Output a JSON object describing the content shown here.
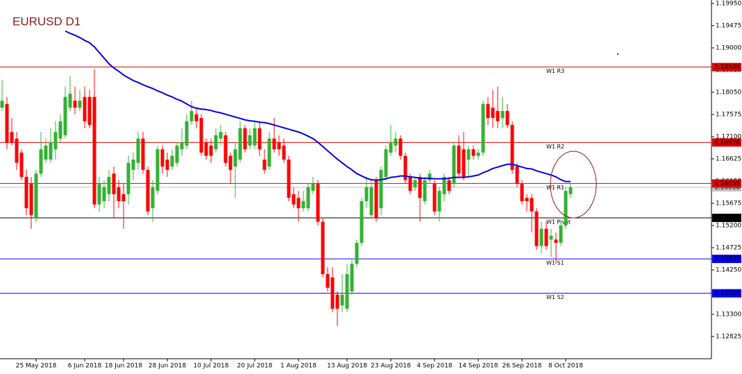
{
  "chart_data": {
    "type": "candlestick",
    "title": "EURUSD D1",
    "ylim": [
      1.1235,
      1.20024
    ],
    "yticks": [
      {
        "value": 1.1995,
        "label": "1.19950"
      },
      {
        "value": 1.19475,
        "label": "1.19475"
      },
      {
        "value": 1.19,
        "label": "1.19000"
      },
      {
        "value": 1.18525,
        "label": "1.18525"
      },
      {
        "value": 1.1805,
        "label": "1.18050"
      },
      {
        "value": 1.17575,
        "label": "1.17575"
      },
      {
        "value": 1.171,
        "label": "1.17100"
      },
      {
        "value": 1.16625,
        "label": "1.16625"
      },
      {
        "value": 1.1615,
        "label": "1.16150"
      },
      {
        "value": 1.15675,
        "label": "1.15675"
      },
      {
        "value": 1.152,
        "label": "1.15200"
      },
      {
        "value": 1.14725,
        "label": "1.14725"
      },
      {
        "value": 1.1425,
        "label": "1.14250"
      },
      {
        "value": 1.13775,
        "label": "1.13775"
      },
      {
        "value": 1.133,
        "label": "1.13300"
      },
      {
        "value": 1.12825,
        "label": "1.12825"
      }
    ],
    "up_color": "#33b133",
    "down_color": "#ff0000",
    "categories": [
      null,
      null,
      null,
      null,
      null,
      null,
      null,
      "25 May 2018",
      null,
      null,
      null,
      null,
      null,
      null,
      null,
      null,
      null,
      "6 Jun 2018",
      null,
      null,
      null,
      null,
      null,
      null,
      null,
      "18 Jun 2018",
      null,
      null,
      null,
      null,
      null,
      null,
      null,
      null,
      "28 Jun 2018",
      null,
      null,
      null,
      null,
      null,
      null,
      null,
      null,
      "10 Jul 2018",
      null,
      null,
      null,
      null,
      null,
      null,
      null,
      null,
      "20 Jul 2018",
      null,
      null,
      null,
      null,
      null,
      null,
      null,
      null,
      "1 Aug 2018",
      null,
      null,
      null,
      null,
      null,
      null,
      null,
      null,
      null,
      "13 Aug 2018",
      null,
      null,
      null,
      null,
      null,
      null,
      null,
      null,
      "23 Aug 2018",
      null,
      null,
      null,
      null,
      null,
      null,
      null,
      null,
      "4 Sep 2018",
      null,
      null,
      null,
      null,
      null,
      null,
      null,
      null,
      "14 Sep 2018",
      null,
      null,
      null,
      null,
      null,
      null,
      null,
      null,
      "26 Sep 2018",
      null,
      null,
      null,
      null,
      null,
      null,
      null,
      null,
      "8 Oct 2018",
      null
    ],
    "candles": [
      [
        1.1772,
        1.1832,
        1.1765,
        1.1787
      ],
      [
        1.178,
        1.1795,
        1.1683,
        1.1698
      ],
      [
        1.172,
        1.175,
        1.1691,
        1.1698
      ],
      [
        1.1706,
        1.172,
        1.1639,
        1.1654
      ],
      [
        1.1676,
        1.1683,
        1.1617,
        1.1624
      ],
      [
        1.1624,
        1.1639,
        1.1542,
        1.1557
      ],
      [
        1.1609,
        1.1624,
        1.1513,
        1.1542
      ],
      [
        1.1535,
        1.1639,
        1.1528,
        1.1631
      ],
      [
        1.1631,
        1.172,
        1.1624,
        1.1683
      ],
      [
        1.1661,
        1.1706,
        1.1654,
        1.1691
      ],
      [
        1.1661,
        1.1728,
        1.1654,
        1.1698
      ],
      [
        1.1683,
        1.1743,
        1.1661,
        1.172
      ],
      [
        1.1706,
        1.1758,
        1.1698,
        1.1743
      ],
      [
        1.1713,
        1.1817,
        1.1706,
        1.1795
      ],
      [
        1.1772,
        1.1839,
        1.1765,
        1.1802
      ],
      [
        1.1787,
        1.1817,
        1.1758,
        1.1772
      ],
      [
        1.1772,
        1.181,
        1.1765,
        1.1787
      ],
      [
        1.1795,
        1.1817,
        1.1728,
        1.1743
      ],
      [
        1.1795,
        1.181,
        1.1728,
        1.1735
      ],
      [
        1.1795,
        1.1854,
        1.1557,
        1.1565
      ],
      [
        1.1565,
        1.1624,
        1.155,
        1.1609
      ],
      [
        1.1572,
        1.1617,
        1.1557,
        1.1602
      ],
      [
        1.1587,
        1.1639,
        1.1572,
        1.1624
      ],
      [
        1.1631,
        1.1646,
        1.1535,
        1.1587
      ],
      [
        1.1602,
        1.1617,
        1.1557,
        1.1572
      ],
      [
        1.1587,
        1.1609,
        1.1513,
        1.1572
      ],
      [
        1.1587,
        1.1669,
        1.1565,
        1.1654
      ],
      [
        1.1639,
        1.1676,
        1.1617,
        1.1661
      ],
      [
        1.1654,
        1.172,
        1.1639,
        1.1706
      ],
      [
        1.1706,
        1.172,
        1.1631,
        1.1639
      ],
      [
        1.1639,
        1.1646,
        1.1542,
        1.155
      ],
      [
        1.1557,
        1.1617,
        1.1528,
        1.1602
      ],
      [
        1.1594,
        1.1691,
        1.1587,
        1.1683
      ],
      [
        1.1683,
        1.1691,
        1.1631,
        1.1646
      ],
      [
        1.1661,
        1.1676,
        1.1624,
        1.1639
      ],
      [
        1.1646,
        1.1683,
        1.1639,
        1.1669
      ],
      [
        1.1654,
        1.1698,
        1.1646,
        1.1691
      ],
      [
        1.1683,
        1.1728,
        1.1669,
        1.1698
      ],
      [
        1.1691,
        1.1758,
        1.1683,
        1.1743
      ],
      [
        1.1743,
        1.1787,
        1.1735,
        1.1765
      ],
      [
        1.1758,
        1.1772,
        1.1728,
        1.1743
      ],
      [
        1.175,
        1.1758,
        1.1669,
        1.1676
      ],
      [
        1.1698,
        1.1706,
        1.1661,
        1.1669
      ],
      [
        1.1691,
        1.1706,
        1.1654,
        1.1669
      ],
      [
        1.1683,
        1.1728,
        1.1676,
        1.1713
      ],
      [
        1.1706,
        1.1735,
        1.1691,
        1.172
      ],
      [
        1.1713,
        1.172,
        1.1646,
        1.1654
      ],
      [
        1.1669,
        1.1676,
        1.1609,
        1.1639
      ],
      [
        1.1646,
        1.1698,
        1.1579,
        1.1683
      ],
      [
        1.1661,
        1.1743,
        1.1654,
        1.1728
      ],
      [
        1.1728,
        1.1735,
        1.1676,
        1.1683
      ],
      [
        1.1691,
        1.1728,
        1.1683,
        1.1713
      ],
      [
        1.1691,
        1.1743,
        1.1683,
        1.1728
      ],
      [
        1.1728,
        1.1743,
        1.1669,
        1.1683
      ],
      [
        1.1661,
        1.1683,
        1.1631,
        1.1639
      ],
      [
        1.1646,
        1.172,
        1.1639,
        1.1706
      ],
      [
        1.1706,
        1.175,
        1.1676,
        1.1683
      ],
      [
        1.1698,
        1.1713,
        1.1669,
        1.1683
      ],
      [
        1.1691,
        1.1706,
        1.1654,
        1.1661
      ],
      [
        1.1661,
        1.1669,
        1.1572,
        1.1579
      ],
      [
        1.1587,
        1.1602,
        1.1557,
        1.1565
      ],
      [
        1.1579,
        1.1594,
        1.1528,
        1.1557
      ],
      [
        1.1557,
        1.1594,
        1.155,
        1.1572
      ],
      [
        1.1557,
        1.1609,
        1.155,
        1.1602
      ],
      [
        1.1594,
        1.1624,
        1.1587,
        1.1609
      ],
      [
        1.1609,
        1.1617,
        1.152,
        1.1528
      ],
      [
        1.1528,
        1.1535,
        1.1409,
        1.1416
      ],
      [
        1.1416,
        1.1431,
        1.1379,
        1.1387
      ],
      [
        1.1409,
        1.1431,
        1.1335,
        1.1342
      ],
      [
        1.1372,
        1.1379,
        1.1305,
        1.1342
      ],
      [
        1.1349,
        1.1416,
        1.1335,
        1.1372
      ],
      [
        1.1342,
        1.1438,
        1.1335,
        1.1416
      ],
      [
        1.1379,
        1.1446,
        1.1372,
        1.1438
      ],
      [
        1.1438,
        1.149,
        1.1431,
        1.1483
      ],
      [
        1.1483,
        1.1579,
        1.1476,
        1.1572
      ],
      [
        1.1572,
        1.1624,
        1.1557,
        1.1602
      ],
      [
        1.1542,
        1.1617,
        1.1535,
        1.1602
      ],
      [
        1.1617,
        1.1624,
        1.1528,
        1.1535
      ],
      [
        1.1557,
        1.1646,
        1.1542,
        1.1639
      ],
      [
        1.1624,
        1.1691,
        1.1617,
        1.1683
      ],
      [
        1.1676,
        1.1735,
        1.1669,
        1.1698
      ],
      [
        1.1691,
        1.172,
        1.1676,
        1.1706
      ],
      [
        1.1706,
        1.1713,
        1.1661,
        1.1669
      ],
      [
        1.1669,
        1.1676,
        1.1609,
        1.1617
      ],
      [
        1.1624,
        1.1631,
        1.1587,
        1.1594
      ],
      [
        1.1602,
        1.1624,
        1.1594,
        1.1617
      ],
      [
        1.1624,
        1.1631,
        1.1528,
        1.1579
      ],
      [
        1.1572,
        1.1624,
        1.1565,
        1.1617
      ],
      [
        1.1617,
        1.1639,
        1.1609,
        1.1631
      ],
      [
        1.1609,
        1.1617,
        1.1542,
        1.155
      ],
      [
        1.155,
        1.1602,
        1.1528,
        1.1594
      ],
      [
        1.1587,
        1.1631,
        1.1572,
        1.1624
      ],
      [
        1.1617,
        1.1624,
        1.1587,
        1.1594
      ],
      [
        1.1609,
        1.1698,
        1.1602,
        1.1691
      ],
      [
        1.1691,
        1.1713,
        1.1624,
        1.1631
      ],
      [
        1.1683,
        1.172,
        1.1617,
        1.1624
      ],
      [
        1.1661,
        1.1691,
        1.1624,
        1.1683
      ],
      [
        1.1683,
        1.1691,
        1.1661,
        1.1669
      ],
      [
        1.1669,
        1.1683,
        1.1661,
        1.1676
      ],
      [
        1.1676,
        1.1787,
        1.1669,
        1.178
      ],
      [
        1.178,
        1.1795,
        1.1735,
        1.175
      ],
      [
        1.1772,
        1.181,
        1.1728,
        1.175
      ],
      [
        1.1765,
        1.1817,
        1.1728,
        1.1743
      ],
      [
        1.175,
        1.1795,
        1.1728,
        1.1765
      ],
      [
        1.1765,
        1.178,
        1.1728,
        1.1735
      ],
      [
        1.1735,
        1.1743,
        1.1631,
        1.1639
      ],
      [
        1.1646,
        1.1654,
        1.1602,
        1.1609
      ],
      [
        1.1609,
        1.1617,
        1.1565,
        1.1572
      ],
      [
        1.1579,
        1.1587,
        1.155,
        1.1572
      ],
      [
        1.1579,
        1.1587,
        1.1505,
        1.155
      ],
      [
        1.155,
        1.1557,
        1.1468,
        1.1476
      ],
      [
        1.1476,
        1.1528,
        1.1461,
        1.1513
      ],
      [
        1.1513,
        1.1528,
        1.1468,
        1.1476
      ],
      [
        1.149,
        1.1513,
        1.1453,
        1.1498
      ],
      [
        1.149,
        1.1505,
        1.1438,
        1.1483
      ],
      [
        1.1483,
        1.1528,
        1.1476,
        1.152
      ],
      [
        1.152,
        1.1602,
        1.1513,
        1.1594
      ],
      [
        1.1587,
        1.1609,
        1.1579,
        1.1602
      ]
    ],
    "ma": {
      "color": "#0000dd",
      "values": [
        null,
        null,
        null,
        null,
        null,
        null,
        null,
        null,
        null,
        null,
        null,
        null,
        null,
        1.1936,
        1.1931,
        1.1927,
        1.1922,
        1.1916,
        1.1911,
        1.1902,
        1.189,
        1.1878,
        1.1866,
        1.1857,
        1.185,
        1.1842,
        1.1836,
        1.183,
        1.1826,
        1.1821,
        1.1817,
        1.1813,
        1.1808,
        1.1804,
        1.1799,
        1.1795,
        1.179,
        1.1786,
        1.178,
        1.1774,
        1.1771,
        1.1769,
        1.1768,
        1.1766,
        1.1763,
        1.1761,
        1.1758,
        1.1755,
        1.1752,
        1.1749,
        1.1746,
        1.1744,
        1.1743,
        1.1741,
        1.174,
        1.1738,
        1.1735,
        1.1732,
        1.1729,
        1.1726,
        1.1723,
        1.172,
        1.1716,
        1.1711,
        1.1706,
        1.1698,
        1.1689,
        1.168,
        1.1671,
        1.1662,
        1.1654,
        1.1646,
        1.1639,
        1.1631,
        1.1626,
        1.1621,
        1.1618,
        1.1617,
        1.1618,
        1.162,
        1.1623,
        1.1624,
        1.1626,
        1.1626,
        1.1624,
        1.1623,
        1.1621,
        1.1621,
        1.1621,
        1.162,
        1.162,
        1.162,
        1.1621,
        1.1623,
        1.1623,
        1.1623,
        1.1624,
        1.1626,
        1.1628,
        1.1633,
        1.1637,
        1.1642,
        1.1645,
        1.1648,
        1.1651,
        1.1651,
        1.1648,
        1.1645,
        1.1642,
        1.1641,
        1.1637,
        1.1634,
        1.1631,
        1.1628,
        1.1624,
        1.1618,
        1.1614,
        1.1614
      ]
    },
    "levels": [
      {
        "name": "W1 R3",
        "value": 1.18589,
        "label": "1.18589",
        "color": "#e00000"
      },
      {
        "name": "W1 R2",
        "value": 1.16976,
        "label": "1.16976",
        "color": "#e00000"
      },
      {
        "name": "W1 R1",
        "value": 1.16099,
        "label": "1.16099",
        "color": "#e00000"
      },
      {
        "name": "W1 Pivot",
        "value": 1.15363,
        "label": "1.15363",
        "color": "#000000"
      },
      {
        "name": "W1 S1",
        "value": 1.14486,
        "label": "1.14486",
        "color": "#0000ff"
      },
      {
        "name": "W1 S2",
        "value": 1.1375,
        "label": "1.13750",
        "color": "#0000ff"
      }
    ],
    "last_price": {
      "value": 1.16018,
      "label": "1.16018",
      "color": "#c0c0c0"
    }
  }
}
